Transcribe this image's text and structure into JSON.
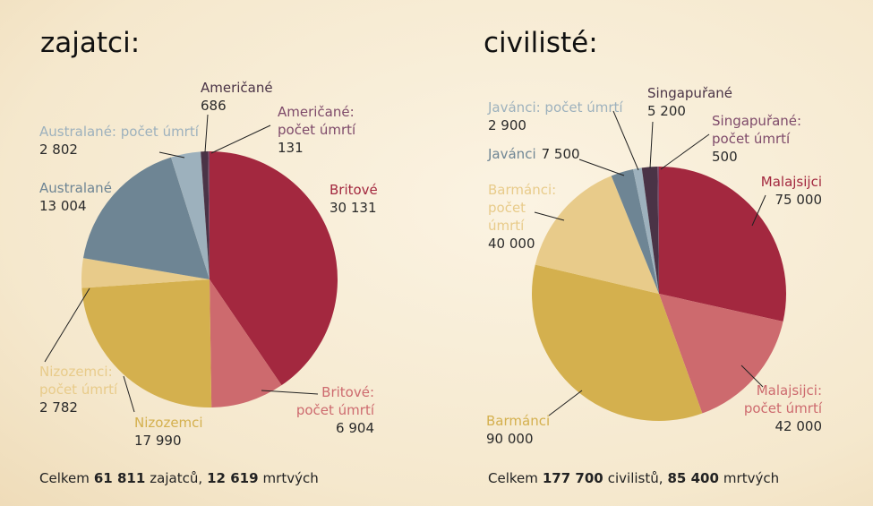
{
  "chart_data": [
    {
      "type": "pie",
      "title": "zajatci:",
      "labels": [
        "Britové",
        "Britové: počet úmrtí",
        "Nizozemci",
        "Nizozemci: počet úmrtí",
        "Australané",
        "Australané: počet úmrtí",
        "Američané",
        "Američané: počet úmrtí"
      ],
      "values": [
        30131,
        6904,
        17990,
        2782,
        13004,
        2802,
        686,
        131
      ],
      "value_labels": [
        "30 131",
        "6 904",
        "17 990",
        "2 782",
        "13 004",
        "2 802",
        "686",
        "131"
      ],
      "colors": [
        "#a3283f",
        "#cd6a6e",
        "#d4b04e",
        "#e8cb8a",
        "#6e8594",
        "#9db1bd",
        "#4a3346",
        "#7e4a6a"
      ],
      "footer": [
        {
          "text": "Celkem"
        },
        {
          "text": "61 811",
          "bold": true
        },
        {
          "text": "zajatců,"
        },
        {
          "text": "12 619",
          "bold": true
        },
        {
          "text": "mrtvých"
        }
      ]
    },
    {
      "type": "pie",
      "title": "civilisté:",
      "labels": [
        "Malajsijci",
        "Malajsijci: počet úmrtí",
        "Barmánci",
        "Barmánci: počet úmrtí",
        "Javánci",
        "Javánci: počet úmrtí",
        "Singapuřané",
        "Singapuřané: počet úmrtí"
      ],
      "values": [
        75000,
        42000,
        90000,
        40000,
        7500,
        2900,
        5200,
        500
      ],
      "value_labels": [
        "75 000",
        "42 000",
        "90 000",
        "40 000",
        "7 500",
        "2 900",
        "5 200",
        "500"
      ],
      "colors": [
        "#a3283f",
        "#cd6a6e",
        "#d4b04e",
        "#e8cb8a",
        "#6e8594",
        "#9db1bd",
        "#4a3346",
        "#7e4a6a"
      ],
      "footer": [
        {
          "text": "Celkem"
        },
        {
          "text": "177 700",
          "bold": true
        },
        {
          "text": "civilistů,"
        },
        {
          "text": "85 400",
          "bold": true
        },
        {
          "text": "mrtvých"
        }
      ]
    }
  ]
}
